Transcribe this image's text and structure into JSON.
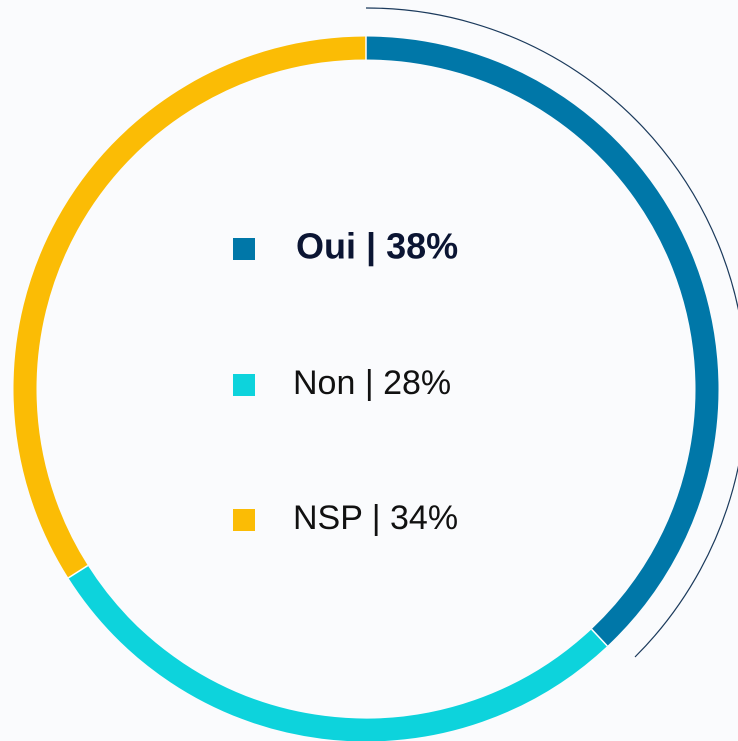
{
  "chart_data": {
    "type": "donut",
    "values": [
      38,
      28,
      34
    ],
    "value_labels": [
      "Oui | 38%",
      "Non | 28%",
      "NSP | 34%"
    ],
    "colors": [
      "#0077a8",
      "#0dd3dc",
      "#fbbc05"
    ]
  }
}
